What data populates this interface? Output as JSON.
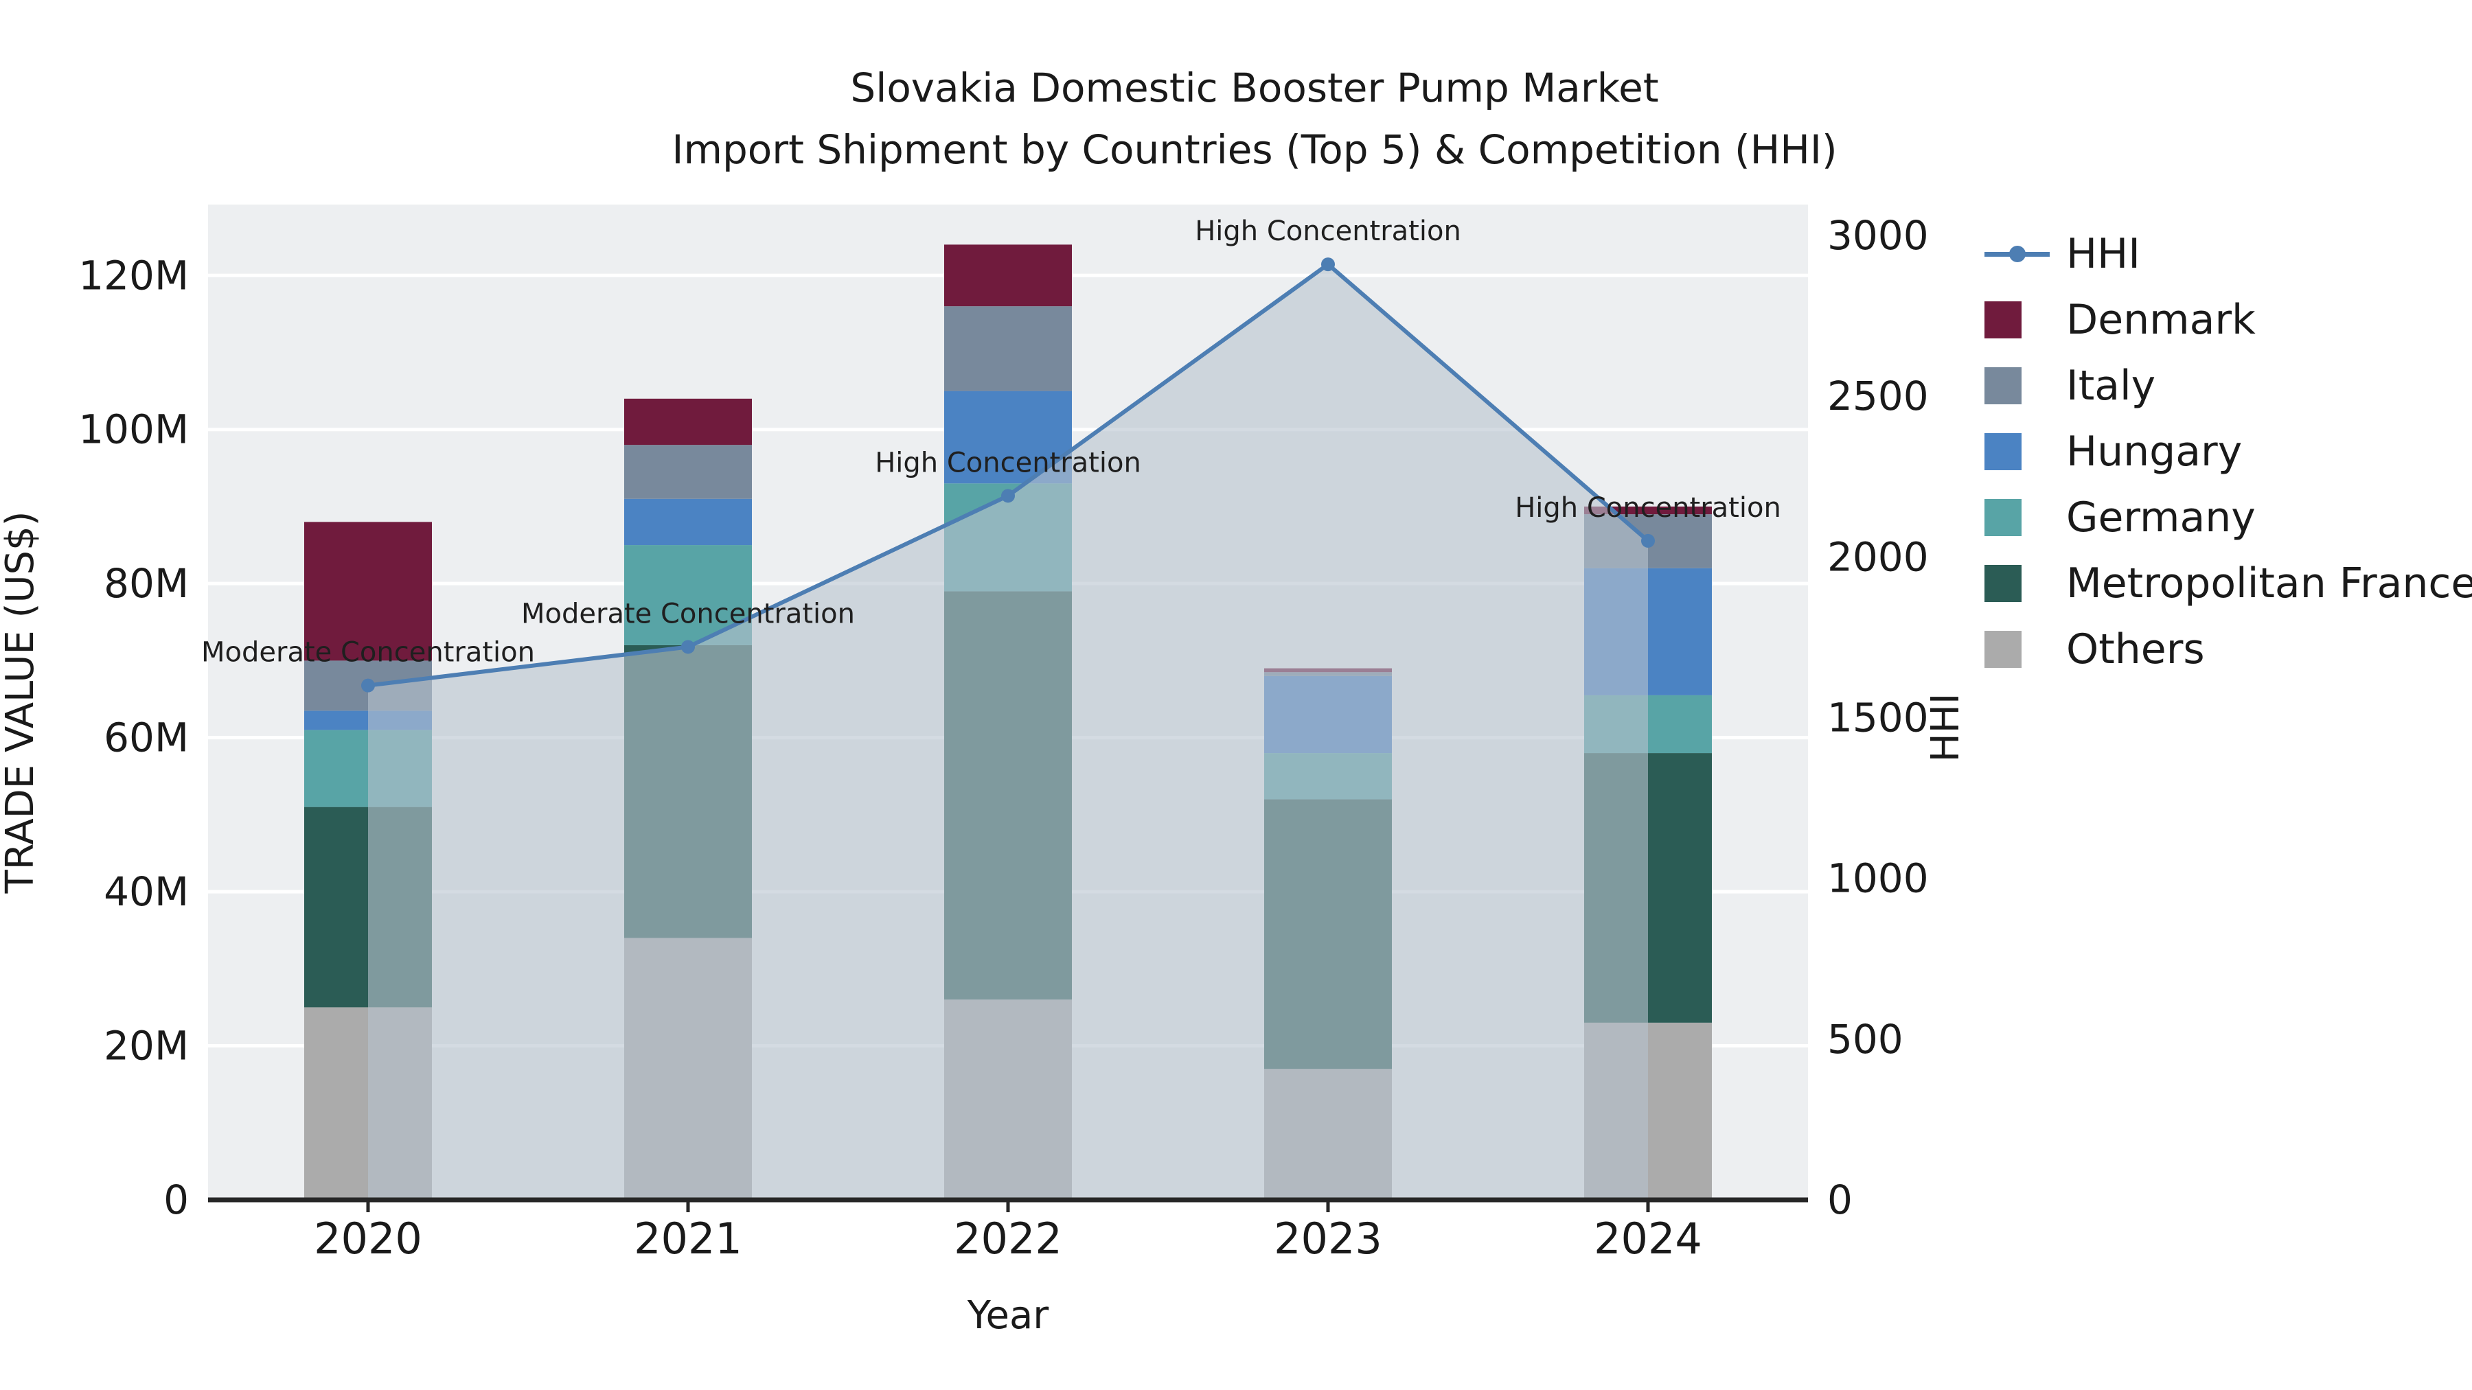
{
  "page": {
    "background": "#ffffff"
  },
  "chart_data": {
    "type": "bar",
    "subtype": "stacked-bars-with-line-area-overlay",
    "title": "Slovakia Domestic Booster Pump Market",
    "subtitle": "Import Shipment by Countries (Top 5) & Competition (HHI)",
    "xlabel": "Year",
    "ylabel_left": "TRADE VALUE (US$)",
    "ylabel_right": "HHI",
    "categories": [
      "2020",
      "2021",
      "2022",
      "2023",
      "2024"
    ],
    "values_unit": "M US$",
    "plot_bg": "#edeff1",
    "grid_color": "#ffffff",
    "ylim_left": [
      0,
      129.2
    ],
    "ylim_right": [
      0,
      3096
    ],
    "left_axis": {
      "values": [
        0,
        20,
        40,
        60,
        80,
        100,
        120
      ],
      "labels": [
        "0",
        "20M",
        "40M",
        "60M",
        "80M",
        "100M",
        "120M"
      ]
    },
    "right_axis": {
      "values": [
        0,
        500,
        1000,
        1500,
        2000,
        2500,
        3000
      ],
      "labels": [
        "0",
        "500",
        "1000",
        "1500",
        "2000",
        "2500",
        "3000"
      ]
    },
    "series": [
      {
        "name": "Others",
        "color": "#ABABAB",
        "values": [
          25,
          34,
          26,
          17,
          23
        ]
      },
      {
        "name": "Metropolitan France",
        "color": "#2B5C55",
        "values": [
          26,
          38,
          53,
          35,
          35
        ]
      },
      {
        "name": "Germany",
        "color": "#58A4A6",
        "values": [
          10,
          13,
          14,
          6,
          7.5
        ]
      },
      {
        "name": "Hungary",
        "color": "#4B83C3",
        "values": [
          2.5,
          6,
          12,
          10,
          16.5
        ]
      },
      {
        "name": "Italy",
        "color": "#78899C",
        "values": [
          6.5,
          7,
          11,
          0.5,
          7
        ]
      },
      {
        "name": "Denmark",
        "color": "#701B3D",
        "values": [
          18,
          6,
          8,
          0.5,
          1
        ]
      }
    ],
    "hhi": {
      "values": [
        1600,
        1720,
        2190,
        2910,
        2050
      ],
      "line_color": "#4D7EB3",
      "area_color": "#B7C3CF",
      "area_opacity": 0.6,
      "annotations": [
        "Moderate Concentration",
        "Moderate Concentration",
        "High Concentration",
        "High Concentration",
        "High Concentration"
      ]
    },
    "legend": [
      {
        "label": "HHI",
        "marker": "line",
        "color": "#4D7EB3"
      },
      {
        "label": "Denmark",
        "marker": "swatch",
        "color": "#701B3D"
      },
      {
        "label": "Italy",
        "marker": "swatch",
        "color": "#78899C"
      },
      {
        "label": "Hungary",
        "marker": "swatch",
        "color": "#4B83C3"
      },
      {
        "label": "Germany",
        "marker": "swatch",
        "color": "#58A4A6"
      },
      {
        "label": "Metropolitan France",
        "marker": "swatch",
        "color": "#2B5C55"
      },
      {
        "label": "Others",
        "marker": "swatch",
        "color": "#ABABAB"
      }
    ]
  }
}
